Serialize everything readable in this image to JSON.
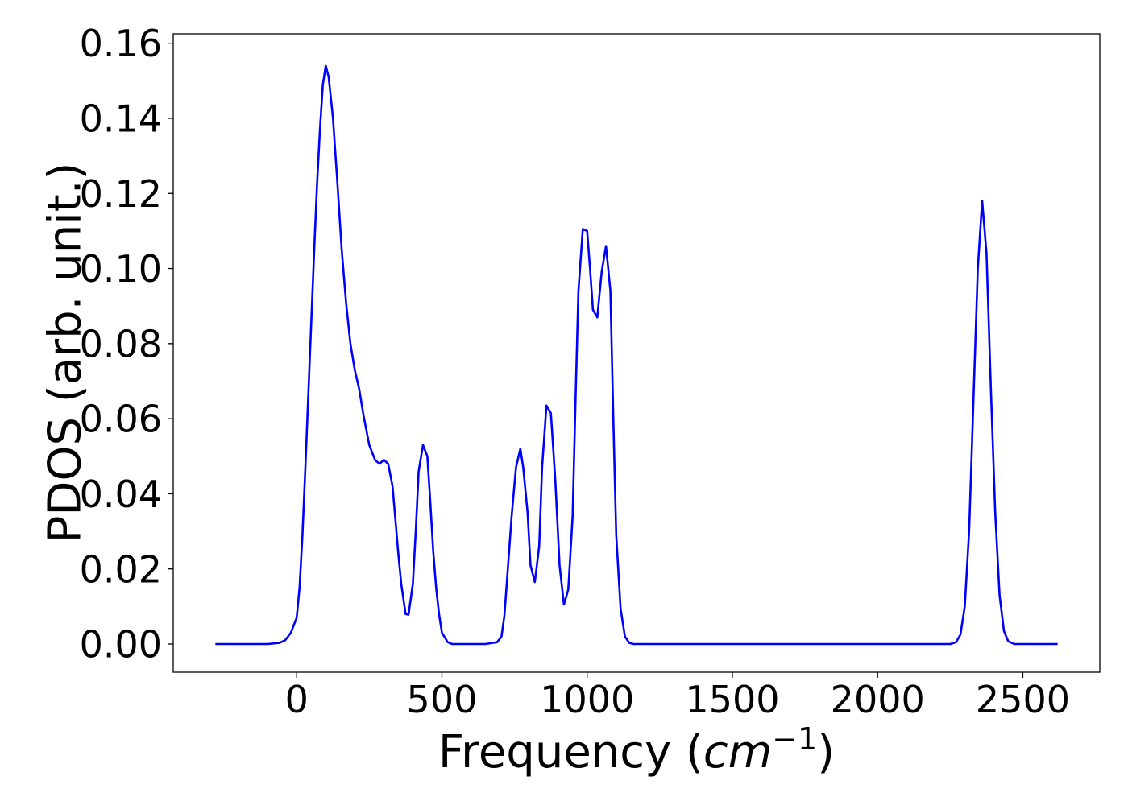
{
  "chart_data": {
    "type": "line",
    "title": "",
    "xlabel": "Frequency (",
    "xlabel_math": "cm",
    "xlabel_sup": "−1",
    "xlabel_close": ")",
    "ylabel": "PDOS (arb. unit.)",
    "xlim": [
      -425,
      2765
    ],
    "ylim": [
      -0.0075,
      0.1625
    ],
    "xticks": [
      0,
      500,
      1000,
      1500,
      2000,
      2500
    ],
    "xtick_labels": [
      "0",
      "500",
      "1000",
      "1500",
      "2000",
      "2500"
    ],
    "yticks": [
      0.0,
      0.02,
      0.04,
      0.06,
      0.08,
      0.1,
      0.12,
      0.14,
      0.16
    ],
    "ytick_labels": [
      "0.00",
      "0.02",
      "0.04",
      "0.06",
      "0.08",
      "0.10",
      "0.12",
      "0.14",
      "0.16"
    ],
    "grid": false,
    "line_color": "#0000ff",
    "series": [
      {
        "x": [
          -280,
          -200,
          -100,
          -60,
          -40,
          -20,
          0,
          10,
          20,
          30,
          40,
          50,
          60,
          70,
          80,
          90,
          100,
          110,
          125,
          140,
          155,
          170,
          185,
          200,
          215,
          230,
          250,
          270,
          285,
          300,
          315,
          330,
          340,
          350,
          360,
          375,
          385,
          400,
          410,
          420,
          435,
          450,
          460,
          470,
          480,
          490,
          500,
          520,
          535,
          550,
          565,
          580,
          600,
          650,
          690,
          705,
          715,
          725,
          740,
          755,
          770,
          780,
          795,
          805,
          820,
          835,
          845,
          860,
          875,
          890,
          905,
          920,
          935,
          950,
          960,
          970,
          985,
          1000,
          1010,
          1020,
          1035,
          1050,
          1065,
          1080,
          1090,
          1100,
          1115,
          1130,
          1145,
          1160,
          1170,
          1185,
          1200,
          1300,
          1600,
          2000,
          2250,
          2270,
          2285,
          2300,
          2315,
          2330,
          2345,
          2360,
          2375,
          2390,
          2405,
          2420,
          2435,
          2450,
          2470,
          2550,
          2620
        ],
        "y": [
          0.0,
          0.0,
          0.0,
          0.0003,
          0.001,
          0.003,
          0.007,
          0.015,
          0.029,
          0.047,
          0.066,
          0.085,
          0.104,
          0.122,
          0.137,
          0.149,
          0.154,
          0.151,
          0.14,
          0.123,
          0.105,
          0.091,
          0.08,
          0.073,
          0.068,
          0.061,
          0.053,
          0.049,
          0.048,
          0.049,
          0.048,
          0.042,
          0.033,
          0.024,
          0.016,
          0.008,
          0.0078,
          0.016,
          0.03,
          0.046,
          0.053,
          0.05,
          0.038,
          0.025,
          0.015,
          0.008,
          0.003,
          0.0005,
          0.0,
          0.0,
          0.0,
          0.0,
          0.0,
          0.0,
          0.0005,
          0.002,
          0.0075,
          0.018,
          0.034,
          0.047,
          0.052,
          0.047,
          0.035,
          0.021,
          0.0165,
          0.026,
          0.047,
          0.0635,
          0.0615,
          0.044,
          0.021,
          0.0105,
          0.0145,
          0.034,
          0.065,
          0.094,
          0.1105,
          0.11,
          0.1,
          0.089,
          0.087,
          0.099,
          0.106,
          0.094,
          0.06,
          0.029,
          0.0095,
          0.002,
          0.0003,
          0.0,
          0.0,
          0.0,
          0.0,
          0.0,
          0.0,
          0.0,
          0.0,
          0.0005,
          0.0025,
          0.01,
          0.03,
          0.065,
          0.1,
          0.118,
          0.104,
          0.068,
          0.035,
          0.013,
          0.0035,
          0.0007,
          0.0,
          0.0,
          0.0
        ]
      }
    ]
  }
}
